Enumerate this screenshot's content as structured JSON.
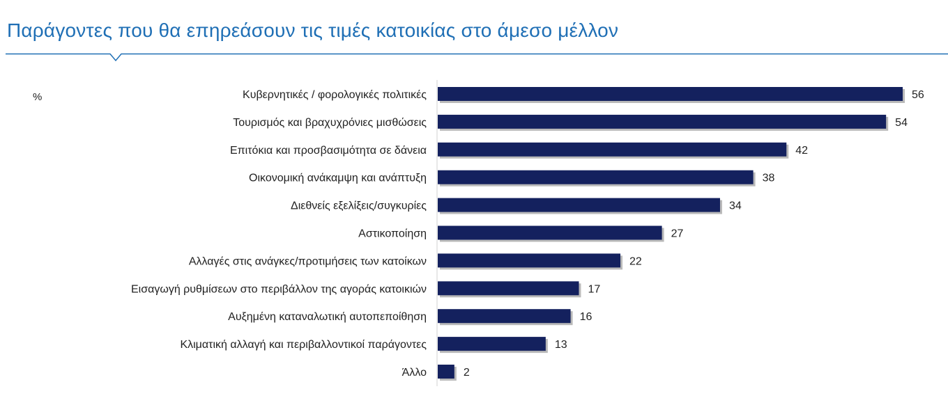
{
  "title": "Παράγοντες που θα επηρεάσουν τις τιμές κατοικίας στο άμεσο μέλλον",
  "colors": {
    "title": "#1f6fb5",
    "rule": "#1f6fb5",
    "bar": "#14215e",
    "bar_shadow": "#b9b9b9",
    "axis": "#d0d0d0"
  },
  "chart_data": {
    "type": "bar",
    "orientation": "horizontal",
    "unit_label": "%",
    "categories": [
      "Κυβερνητικές / φορολογικές πολιτικές",
      "Τουρισμός και βραχυχρόνιες μισθώσεις",
      "Επιτόκια και προσβασιμότητα σε δάνεια",
      "Οικονομική ανάκαμψη και ανάπτυξη",
      "Διεθνείς  εξελίξεις/συγκυρίες",
      "Αστικοποίηση",
      "Αλλαγές  στις ανάγκες/προτιμήσεις των κατοίκων",
      "Εισαγωγή  ρυθμίσεων στο περιβάλλον  της αγοράς κατοικιών",
      "Αυξημένη  καταναλωτική αυτοπεποίθηση",
      "Κλιματική αλλαγή  και περιβαλλοντικοί παράγοντες",
      "Άλλο"
    ],
    "values": [
      56,
      54,
      42,
      38,
      34,
      27,
      22,
      17,
      16,
      13,
      2
    ],
    "xlim": [
      0,
      56
    ],
    "grid": false,
    "legend": "none"
  }
}
